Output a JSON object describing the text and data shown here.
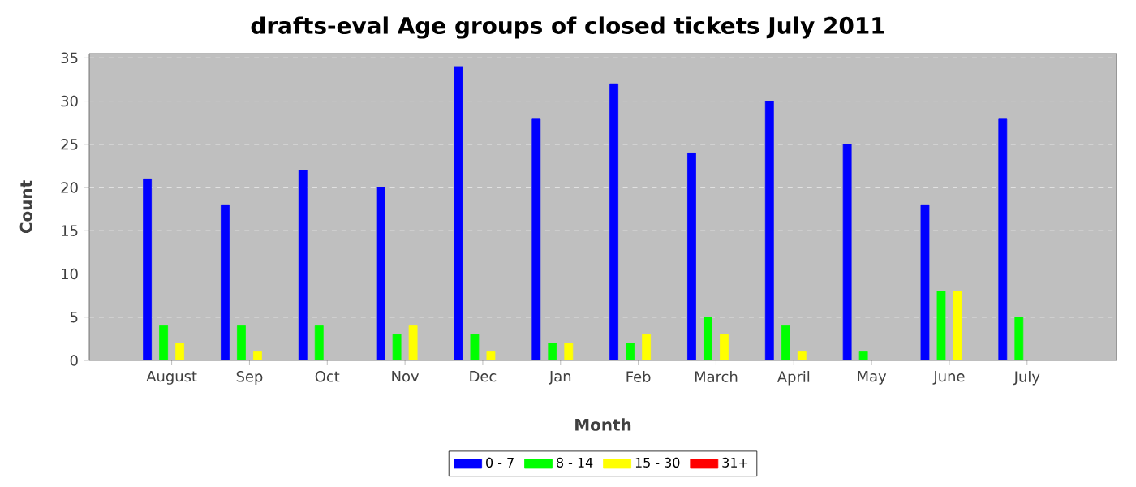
{
  "chart_data": {
    "type": "bar",
    "title": "drafts-eval Age groups of closed tickets July 2011",
    "xlabel": "Month",
    "ylabel": "Count",
    "categories": [
      "August",
      "Sep",
      "Oct",
      "Nov",
      "Dec",
      "Jan",
      "Feb",
      "March",
      "April",
      "May",
      "June",
      "July"
    ],
    "series": [
      {
        "name": "0 - 7",
        "color": "#0000ff",
        "values": [
          21,
          18,
          22,
          20,
          34,
          28,
          32,
          24,
          30,
          25,
          18,
          28
        ]
      },
      {
        "name": "8 - 14",
        "color": "#00ff00",
        "values": [
          4,
          4,
          4,
          3,
          3,
          2,
          2,
          5,
          4,
          1,
          8,
          5
        ]
      },
      {
        "name": "15 - 30",
        "color": "#ffff00",
        "values": [
          2,
          1,
          0,
          4,
          1,
          2,
          3,
          3,
          1,
          0,
          8,
          0
        ]
      },
      {
        "name": "31+",
        "color": "#ff0000",
        "values": [
          0,
          0,
          0,
          0,
          0,
          0,
          0,
          0,
          0,
          0,
          0,
          0
        ]
      }
    ],
    "ylim": [
      0,
      35.5
    ],
    "yticks": [
      0,
      5,
      10,
      15,
      20,
      25,
      30,
      35
    ],
    "grid": "y",
    "legend": "bottom"
  }
}
